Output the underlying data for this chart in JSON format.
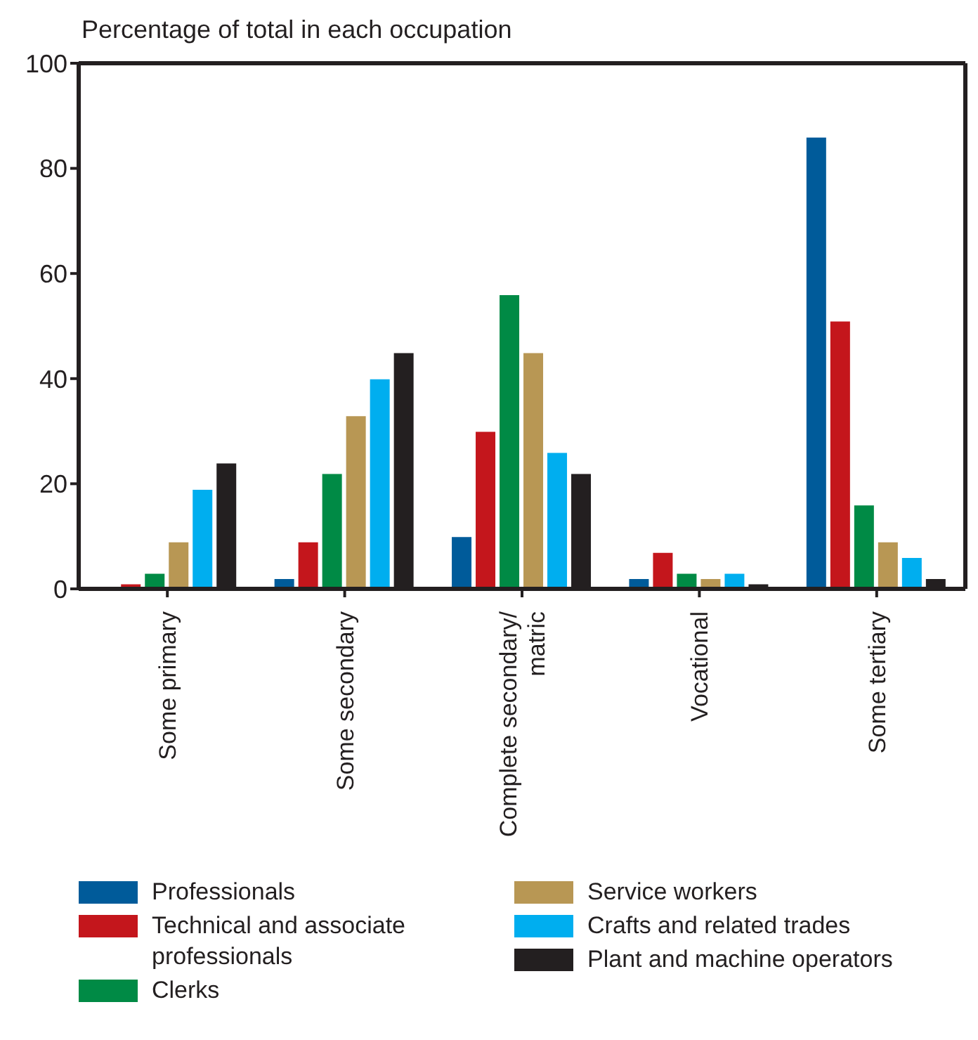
{
  "chart_data": {
    "type": "bar",
    "title": "Percentage of total in each occupation",
    "categories": [
      "Some primary",
      "Some secondary",
      "Complete secondary/matric",
      "Vocational",
      "Some tertiary"
    ],
    "series": [
      {
        "name": "Professionals",
        "color": "#005b9a",
        "values": [
          0,
          2,
          10,
          2,
          86
        ]
      },
      {
        "name": "Technical and associate professionals",
        "color": "#c4161c",
        "values": [
          1,
          9,
          30,
          7,
          51
        ]
      },
      {
        "name": "Clerks",
        "color": "#008a45",
        "values": [
          3,
          22,
          56,
          3,
          16
        ]
      },
      {
        "name": "Service workers",
        "color": "#b89754",
        "values": [
          9,
          33,
          45,
          2,
          9
        ]
      },
      {
        "name": "Crafts and related trades",
        "color": "#00aeef",
        "values": [
          19,
          40,
          26,
          3,
          6
        ]
      },
      {
        "name": "Plant and machine operators",
        "color": "#231f20",
        "values": [
          24,
          45,
          22,
          1,
          2
        ]
      }
    ],
    "ylim": [
      0,
      100
    ],
    "yticks": [
      0,
      20,
      40,
      60,
      80,
      100
    ],
    "grid": false,
    "legend": "bottom"
  }
}
